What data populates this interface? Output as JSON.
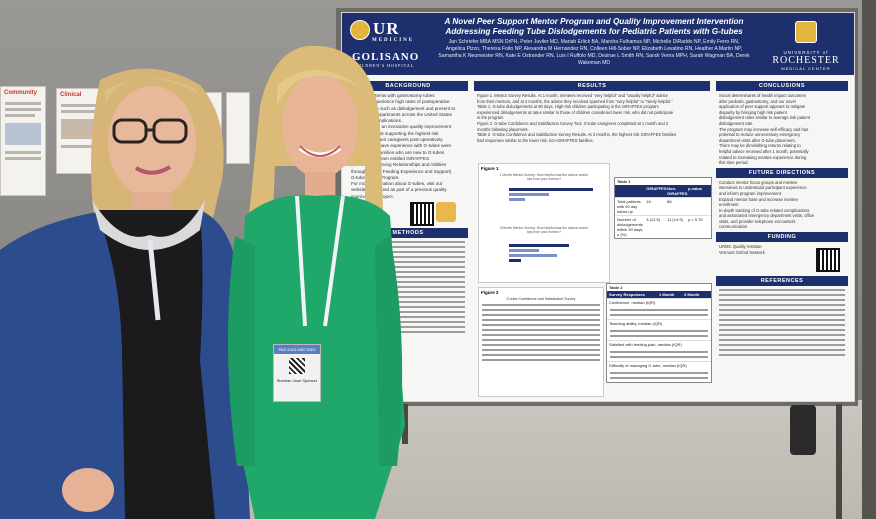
{
  "poster": {
    "title_line1": "A Novel Peer Support Mentor Program and Quality Improvement Intervention",
    "title_line2": "Addressing Feeding Tube Dislodgements for Pediatric Patients with G-tubes",
    "authors_line1": "Jan Schriefer MBA MSN DrPH, Peter Juviler MD, Mariah Erlick BA, Marsha Fulhamus NP, Michelle DiRaddo NP, Emily Ferro RN,",
    "authors_line2": "Angelica Pizzo, Theresa Foito NP, Alexandra M Hernandez RN, Colleen Hill-Sober NP, Elizabeth Levatino RN, Heather A Martin NP,",
    "authors_line3": "Samantha K Neumeister RN, Kate E Ostrander RN, Luis I Ruffolo MD, Desirae L Smith RN, Sarah Verna MPH, Sarah Wagman BA, Derek Wakeman MD",
    "logo_left_main": "UR",
    "logo_left_sub": "MEDICINE",
    "logo_left2": "GOLISANO",
    "logo_left2_sub": "CHILDREN'S HOSPITAL",
    "logo_right_top": "UNIVERSITY of",
    "logo_right_mid": "ROCHESTER",
    "logo_right_bot": "MEDICAL CENTER",
    "sections": {
      "background": "BACKGROUND",
      "methods": "METHODS",
      "results": "RESULTS",
      "conclusions": "CONCLUSIONS",
      "future": "FUTURE DIRECTIONS",
      "funding": "FUNDING",
      "references": "REFERENCES"
    },
    "background_text": [
      "Pediatric patients with gastrostomy tubes",
      "(G-tubes) experience high rates of postoperative",
      "complications such as dislodgement and present to",
      "emergency departments across the United States",
      "with these complications.",
      "We conducted an innovative quality improvement",
      "project aimed at supporting the highest risk",
      "children and their caregivers post-operatively.",
      "Families who have experience with G-tubes were",
      "connected to families who are new to G-tubes",
      "through a program entitled GIRAFFES",
      "(G-tubes: Improving Relationships and Abilities",
      "through Family Feeding Experience and Support)",
      "G-tube Buddy Program.",
      "For more information about G-tubes, visit our",
      "website developed as part of a previous quality",
      "improvement project."
    ],
    "results_text": [
      "Figure 1. Mentor Survey Results. At 1 month, mentees received \"very helpful\" and \"usually helpful\" advice",
      "from their mentors, and at 3 months, the advice they received spanned from \"very helpful\" to \"rarely helpful.\"",
      "Table 1. G-tube dislodgements at 90 days. High-risk children participating in the GIRAFFES program",
      "experienced dislodgements at rates similar to those of children considered lower risk, who did not participate",
      "in the program",
      "Figure 2. G-tube Confidence and Satisfaction Survey Tool. G-tube caregivers completed at 1 month and 3",
      "months following placement.",
      "Table 2. G-tube Confidence and Satisfaction Survey Results. At 3 months, the highest risk GIRAFFES families",
      "had responses similar to the lower risk, non-GIRAFFES families."
    ],
    "conclusions_text": [
      "Social determinants of health impact outcomes",
      "after pediatric gastrostomy, and our novel",
      "application of peer support appears to mitigate",
      "disparity by bringing high risk patient",
      "dislodgement rates similar to average risk patient",
      "dislodgement rate.",
      "The program may increase self-efficacy and has",
      "potential to reduce unnecessary emergency",
      "department visits after G-tube placement.",
      "There may be diminishing returns relating to",
      "helpful advice received after 1 month, potentially",
      "related to increasing mentee experience during",
      "this time period."
    ],
    "future_text": [
      "Conduct mentor focus groups and mentee",
      "interviews to understand participant experience",
      "and inform program improvement",
      "Expand mentor base and increase mentee",
      "enrollment",
      "In-depth tracking of G-tube related complications",
      "and associated emergency department visits, office",
      "visits, and provider telephone encounters",
      "communication"
    ],
    "funding_text": [
      "URMC Quality Institute",
      "Vermont Oxford Network"
    ],
    "fig1_label": "Figure 1",
    "fig1_cap_a": "1 Month Mentor Survey: How helpful was the advice and/or tips from your mentor?",
    "fig1_cap_b": "3 Month Mentor Survey: How helpful was the advice and/or tips from your mentor?",
    "fig2_label": "Figure 2",
    "fig2_cap": "G-tube Confidence and Satisfaction Survey",
    "table1_label": "Table 1",
    "table1_cols": [
      "",
      "GIRAFFES",
      "Non-GIRAFFES",
      "p-value"
    ],
    "table1_rows": [
      [
        "Total patients with 90 day follow up",
        "16",
        "86",
        ""
      ],
      [
        "Number of dislodgements within 90 days, n (%)",
        "3 (12.5)",
        "11 (14.9)",
        "p = 0.75"
      ]
    ],
    "table2_label": "Table 2",
    "table2_cols": [
      "Survey Responses",
      "1 Month",
      "3 Month"
    ],
    "table2_rows": [
      [
        "Confidence, median (IQR)",
        "",
        ""
      ],
      [
        "Teaching ability, median (IQR)",
        "",
        ""
      ],
      [
        "Satisfied with feeding plan, median (IQR)",
        "",
        ""
      ],
      [
        "Difficulty of managing G-tube, median (IQR)",
        "",
        ""
      ]
    ]
  },
  "left_small_posters": [
    {
      "heading": "Community"
    },
    {
      "heading": "Clinical"
    }
  ],
  "badge": {
    "event": "PAS 2023 MEETING",
    "name": "Siobhan Jane Spencer"
  }
}
